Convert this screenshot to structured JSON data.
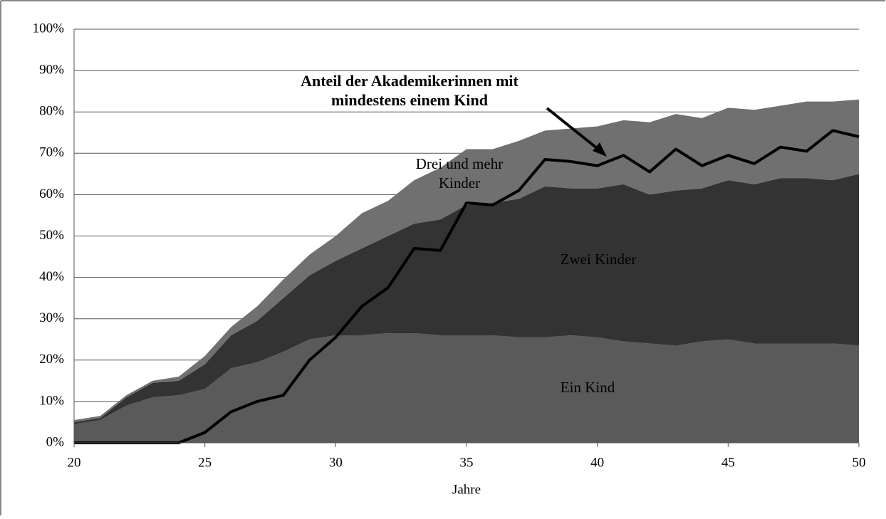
{
  "chart_data": {
    "type": "stacked_area_line",
    "x_label": "Jahre",
    "x": [
      20,
      21,
      22,
      23,
      24,
      25,
      26,
      27,
      28,
      29,
      30,
      31,
      32,
      33,
      34,
      35,
      36,
      37,
      38,
      39,
      40,
      41,
      42,
      43,
      44,
      45,
      46,
      47,
      48,
      49,
      50
    ],
    "xlim": [
      20,
      50
    ],
    "xticks": [
      20,
      25,
      30,
      35,
      40,
      45,
      50
    ],
    "ylim": [
      0,
      100
    ],
    "yticks": [
      {
        "value": 0,
        "label": "0%"
      },
      {
        "value": 10,
        "label": "10%"
      },
      {
        "value": 20,
        "label": "20%"
      },
      {
        "value": 30,
        "label": "30%"
      },
      {
        "value": 40,
        "label": "40%"
      },
      {
        "value": 50,
        "label": "50%"
      },
      {
        "value": 60,
        "label": "60%"
      },
      {
        "value": 70,
        "label": "70%"
      },
      {
        "value": 80,
        "label": "80%"
      },
      {
        "value": 90,
        "label": "90%"
      },
      {
        "value": 100,
        "label": "100%"
      }
    ],
    "grid": true,
    "series": [
      {
        "name": "Ein Kind",
        "color": "#5a5a5a",
        "values": [
          4.5,
          5.5,
          9,
          11,
          11.5,
          13,
          18,
          19.5,
          22,
          25,
          26,
          26,
          26.5,
          26.5,
          26,
          26,
          26,
          25.5,
          25.5,
          26,
          25.5,
          24.5,
          24,
          23.5,
          24.5,
          25,
          24,
          24,
          24,
          24,
          23.5
        ]
      },
      {
        "name": "Zwei Kinder",
        "color": "#333333",
        "values": [
          0.5,
          0.5,
          2,
          3.5,
          3.5,
          6,
          8,
          10,
          13,
          15.5,
          18,
          21,
          23.5,
          26.5,
          28,
          31.5,
          32,
          33.5,
          36.5,
          35.5,
          36,
          38,
          36,
          37.5,
          37,
          38.5,
          38.5,
          40,
          40,
          39.5,
          41.5
        ]
      },
      {
        "name": "Drei und mehr Kinder",
        "color": "#707070",
        "values": [
          0.5,
          0.5,
          0.5,
          0.5,
          1,
          2,
          2,
          3.5,
          4.5,
          5,
          6,
          8.5,
          8.5,
          10.5,
          12.5,
          13.5,
          13,
          14,
          13.5,
          14.5,
          15,
          15.5,
          17.5,
          18.5,
          17,
          17.5,
          18,
          17.5,
          18.5,
          19,
          18
        ]
      },
      {
        "name": "Anteil der Akademikerinnen mit mindestens einem Kind",
        "type": "line",
        "color": "#000000",
        "values": [
          0,
          0,
          0,
          0,
          0,
          2.5,
          7.5,
          10,
          11.5,
          20,
          25.5,
          33,
          37.5,
          47,
          46.5,
          58,
          57.5,
          61,
          68.5,
          68,
          67,
          69.5,
          65.5,
          71,
          67,
          69.5,
          67.5,
          71.5,
          70.5,
          75.5,
          74
        ]
      }
    ]
  }
}
